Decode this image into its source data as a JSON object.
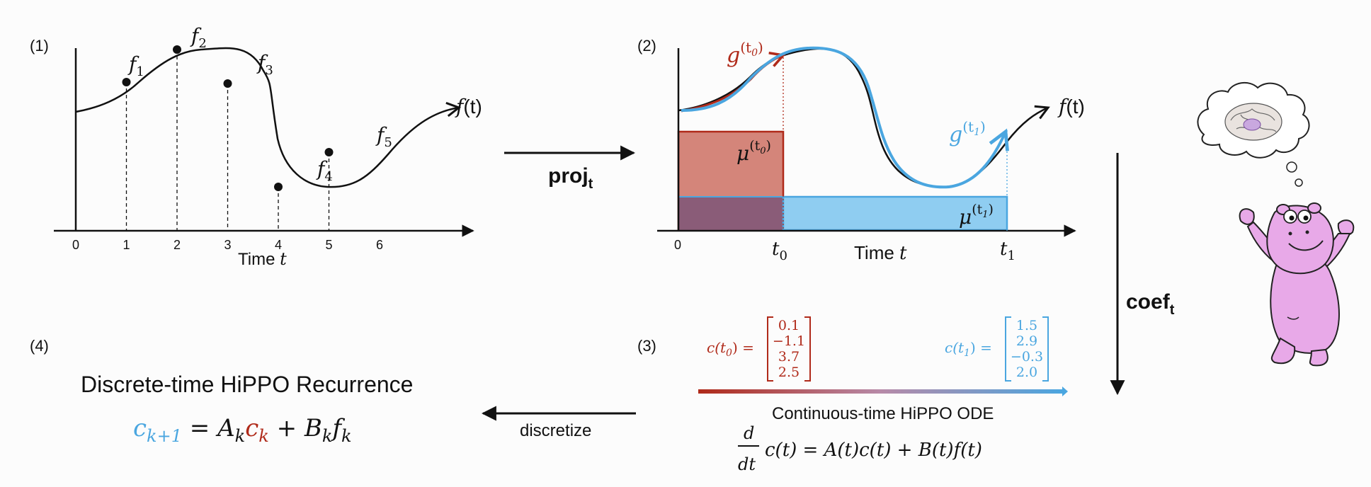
{
  "colors": {
    "red": "#b02a1a",
    "red_fill": "#d4857a",
    "overlap_fill": "#8a5c78",
    "blue": "#4aa6e0",
    "blue_fill": "#8fcdf1",
    "black": "#111111",
    "hippo": "#e8a9e8"
  },
  "panel1": {
    "label": "(1)",
    "xlabel": "Time",
    "xlabel_var": "t",
    "ticks": [
      "0",
      "1",
      "2",
      "3",
      "4",
      "5",
      "6"
    ],
    "curve_label": "f",
    "curve_label_arg": "(t)",
    "points": [
      {
        "name": "f",
        "sub": "1",
        "t": 1
      },
      {
        "name": "f",
        "sub": "2",
        "t": 2
      },
      {
        "name": "f",
        "sub": "3",
        "t": 3
      },
      {
        "name": "f",
        "sub": "4",
        "t": 4
      },
      {
        "name": "f",
        "sub": "5",
        "t": 5
      }
    ]
  },
  "panel2": {
    "label": "(2)",
    "xlabel": "Time",
    "xlabel_var": "t",
    "tick_zero": "0",
    "t0": "t",
    "t0_sub": "0",
    "t1": "t",
    "t1_sub": "1",
    "curve_label": "f",
    "curve_label_arg": "(t)",
    "g_t0": "g",
    "g_t0_sup": "(t",
    "g_t0_sup_sub": "0",
    "g_t0_sup_close": ")",
    "g_t1": "g",
    "g_t1_sup": "(t",
    "g_t1_sup_sub": "1",
    "g_t1_sup_close": ")",
    "mu_t0": "μ",
    "mu_t0_sup": "(t",
    "mu_t0_sup_sub": "0",
    "mu_t0_sup_close": ")",
    "mu_t1": "μ",
    "mu_t1_sup": "(t",
    "mu_t1_sup_sub": "1",
    "mu_t1_sup_close": ")"
  },
  "arrows": {
    "proj": "proj",
    "proj_sub": "t",
    "coef": "coef",
    "coef_sub": "t",
    "discretize": "discretize"
  },
  "panel3": {
    "label": "(3)",
    "c_t0_lhs": "c(t",
    "c_t0_sub": "0",
    "c_t0_close": ") =",
    "c_t0_values": [
      "0.1",
      "−1.1",
      "3.7",
      "2.5"
    ],
    "c_t1_lhs": "c(t",
    "c_t1_sub": "1",
    "c_t1_close": ") =",
    "c_t1_values": [
      "1.5",
      "2.9",
      "−0.3",
      "2.0"
    ],
    "title": "Continuous-time HiPPO ODE",
    "eq_d": "d",
    "eq_dt": "dt",
    "eq_rhs": "c(t) = A(t)c(t) + B(t)f(t)"
  },
  "panel4": {
    "label": "(4)",
    "title": "Discrete-time HiPPO Recurrence",
    "lhs": "c",
    "lhs_sub": "k+1",
    "eq": " = ",
    "A": "A",
    "A_sub": "k",
    "c": "c",
    "c_sub": "k",
    "plus": " + ",
    "B": "B",
    "B_sub": "k",
    "f": "f",
    "f_sub": "k"
  }
}
